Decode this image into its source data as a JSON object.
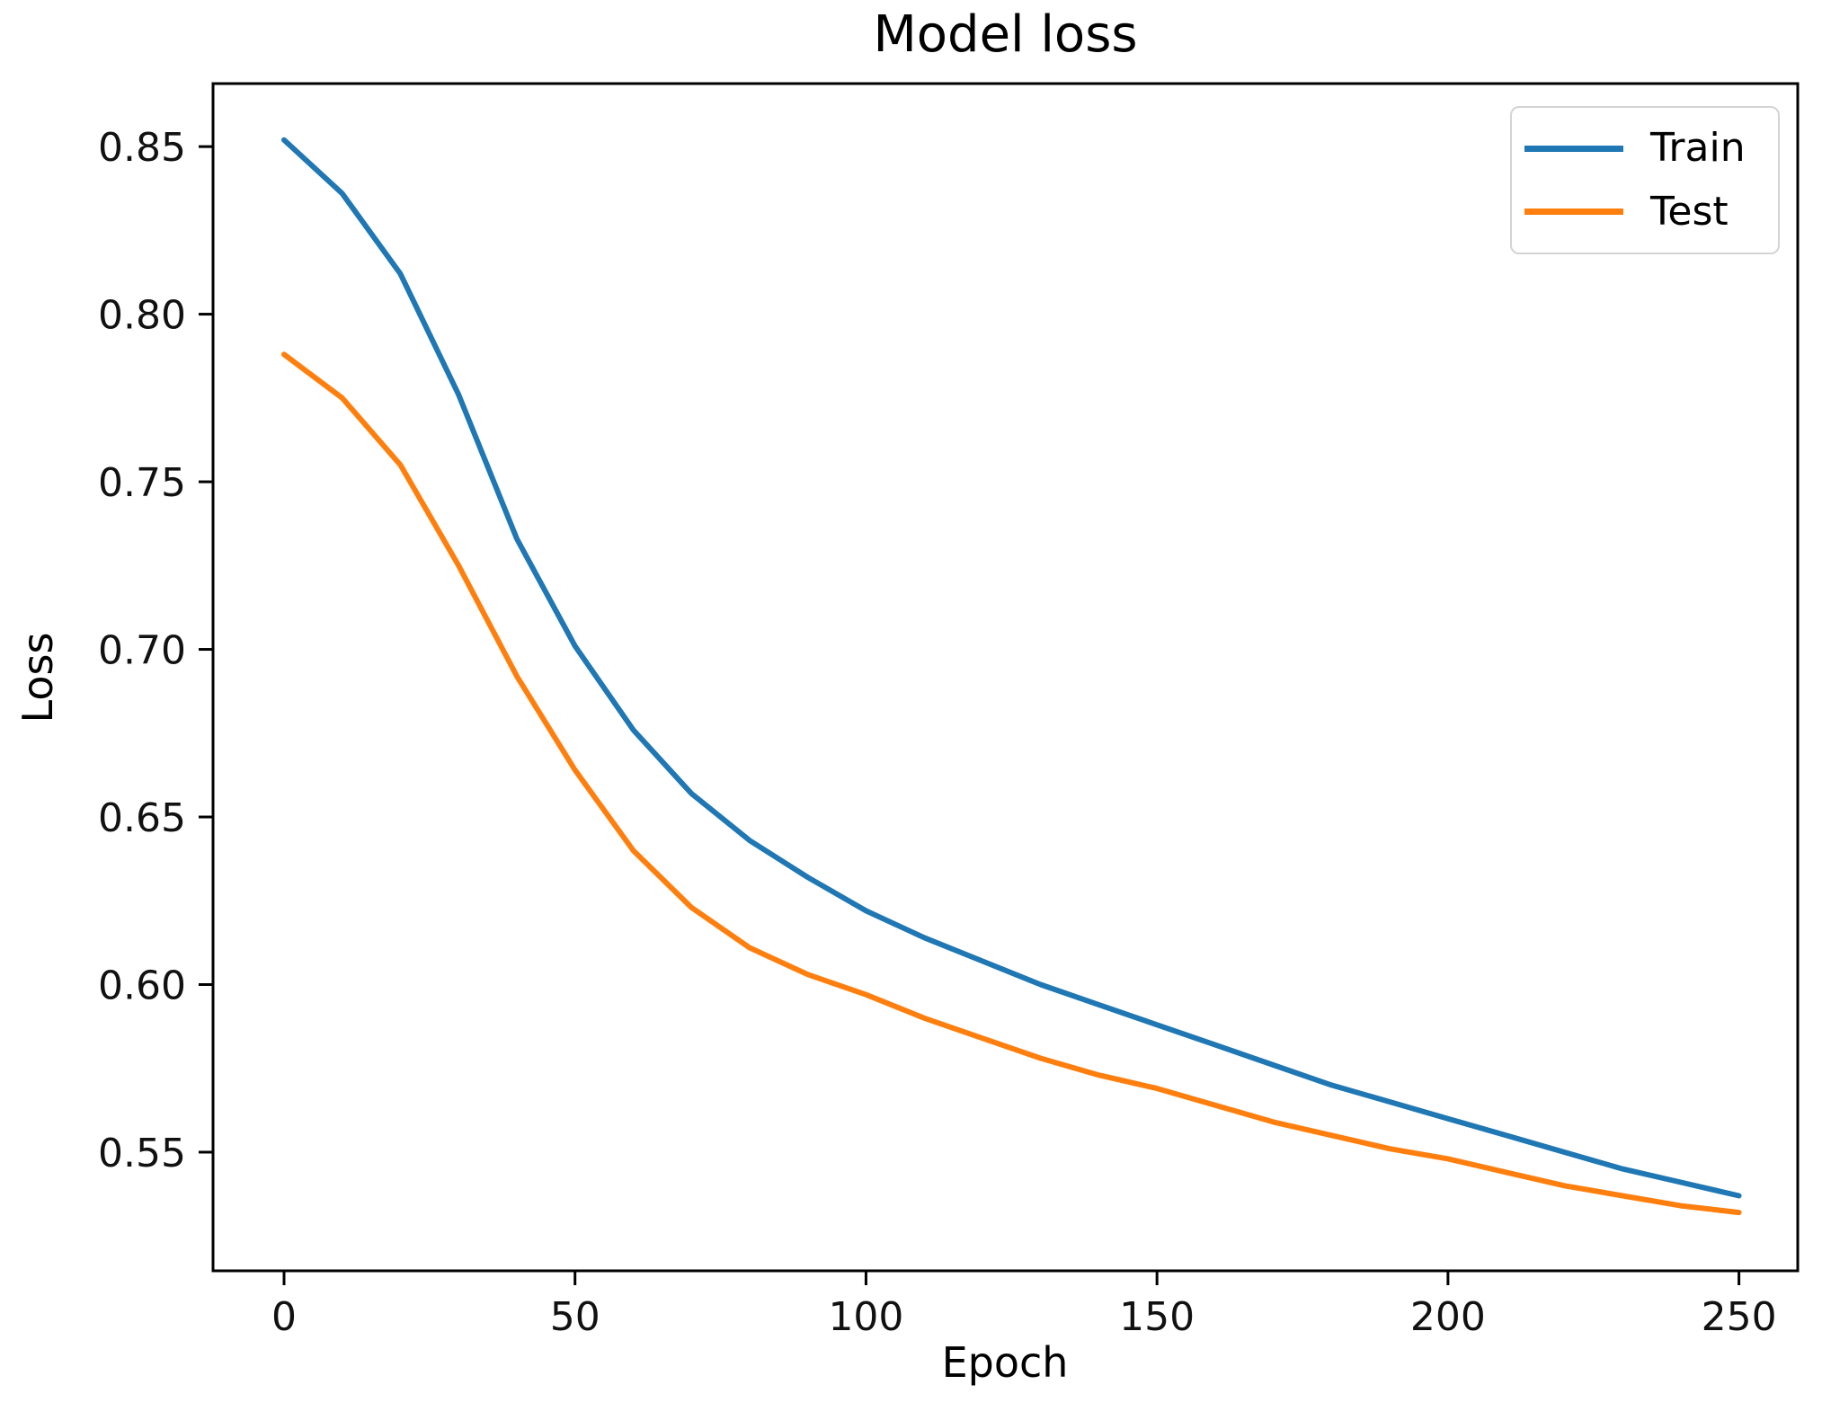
{
  "figure": {
    "title": "Model loss",
    "xlabel": "Epoch",
    "ylabel": "Loss"
  },
  "chart_data": {
    "type": "line",
    "title": "Model loss",
    "xlabel": "Epoch",
    "ylabel": "Loss",
    "grid": false,
    "legend_position": "upper right",
    "xlim": [
      -12.2,
      260.1
    ],
    "ylim": [
      0.5146,
      0.8688
    ],
    "xticks": [
      0,
      50,
      100,
      150,
      200,
      250
    ],
    "xtick_labels": [
      "0",
      "50",
      "100",
      "150",
      "200",
      "250"
    ],
    "yticks": [
      0.55,
      0.6,
      0.65,
      0.7,
      0.75,
      0.8,
      0.85
    ],
    "ytick_labels": [
      "0.55",
      "0.60",
      "0.65",
      "0.70",
      "0.75",
      "0.80",
      "0.85"
    ],
    "x": [
      0,
      10,
      20,
      30,
      40,
      50,
      60,
      70,
      80,
      90,
      100,
      110,
      120,
      130,
      140,
      150,
      160,
      170,
      180,
      190,
      200,
      210,
      220,
      230,
      240,
      250
    ],
    "series": [
      {
        "name": "Train",
        "color": "#1f77b4",
        "values": [
          0.852,
          0.836,
          0.812,
          0.776,
          0.733,
          0.701,
          0.676,
          0.657,
          0.643,
          0.632,
          0.622,
          0.614,
          0.607,
          0.6,
          0.594,
          0.588,
          0.582,
          0.576,
          0.57,
          0.565,
          0.56,
          0.555,
          0.55,
          0.545,
          0.541,
          0.537
        ]
      },
      {
        "name": "Test",
        "color": "#ff7f0e",
        "values": [
          0.788,
          0.775,
          0.755,
          0.725,
          0.692,
          0.664,
          0.64,
          0.623,
          0.611,
          0.603,
          0.597,
          0.59,
          0.584,
          0.578,
          0.573,
          0.569,
          0.564,
          0.559,
          0.555,
          0.551,
          0.548,
          0.544,
          0.54,
          0.537,
          0.534,
          0.532
        ]
      }
    ]
  }
}
